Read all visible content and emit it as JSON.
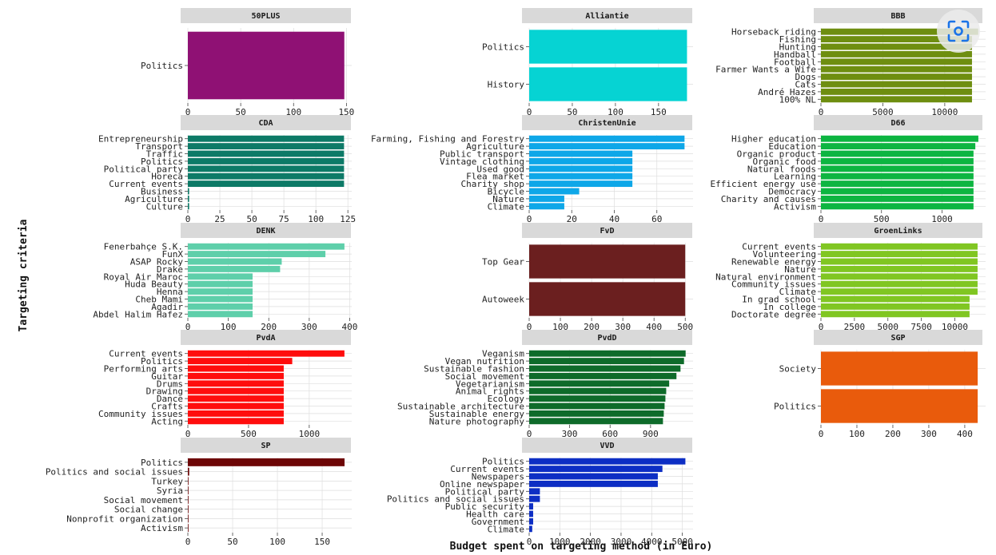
{
  "figure": {
    "xlabel": "Budget spent on targeting method (in Euro)",
    "ylabel": "Targeting criteria"
  },
  "colors": {
    "strip": "#d9d9d9",
    "grid": "#dedede",
    "tick": "#444444"
  },
  "chart_data": [
    {
      "type": "bar",
      "orientation": "horizontal",
      "title": "50PLUS",
      "color": "#8f1174",
      "categories": [
        "Politics"
      ],
      "values": [
        148
      ],
      "xlim": [
        0,
        155
      ],
      "xticks": [
        0,
        50,
        100,
        150
      ]
    },
    {
      "type": "bar",
      "orientation": "horizontal",
      "title": "Alliantie",
      "color": "#06d3d3",
      "categories": [
        "Politics",
        "History"
      ],
      "values": [
        183,
        183
      ],
      "xlim": [
        0,
        190
      ],
      "xticks": [
        0,
        50,
        100,
        150
      ]
    },
    {
      "type": "bar",
      "orientation": "horizontal",
      "title": "BBB",
      "color": "#6e8e10",
      "categories": [
        "Horseback riding",
        "Fishing",
        "Hunting",
        "Handball",
        "Football",
        "Farmer Wants a Wife",
        "Dogs",
        "Cats",
        "André Hazes",
        "100% NL"
      ],
      "values": [
        12700,
        12200,
        12200,
        12200,
        12200,
        12200,
        12200,
        12200,
        12200,
        12200
      ],
      "xlim": [
        0,
        13300
      ],
      "xticks": [
        0,
        5000,
        10000
      ]
    },
    {
      "type": "bar",
      "orientation": "horizontal",
      "title": "CDA",
      "color": "#0d7a67",
      "categories": [
        "Entrepreneurship",
        "Transport",
        "Traffic",
        "Politics",
        "Political party",
        "Horeca",
        "Current events",
        "Business",
        "Agriculture",
        "Culture"
      ],
      "values": [
        122,
        122,
        122,
        122,
        122,
        122,
        122,
        1,
        1,
        1
      ],
      "xlim": [
        0,
        128
      ],
      "xticks": [
        0,
        25,
        50,
        75,
        100,
        125
      ]
    },
    {
      "type": "bar",
      "orientation": "horizontal",
      "title": "ChristenUnie",
      "color": "#0ea7e8",
      "categories": [
        "Farming, Fishing and Forestry",
        "Agriculture",
        "Public transport",
        "Vintage clothing",
        "Used good",
        "Flea market",
        "Charity shop",
        "Bicycle",
        "Nature",
        "Climate"
      ],
      "values": [
        73,
        73,
        48.5,
        48.5,
        48.5,
        48.5,
        48.5,
        23.5,
        16.5,
        16.5
      ],
      "xlim": [
        0,
        77
      ],
      "xticks": [
        0,
        20,
        40,
        60
      ]
    },
    {
      "type": "bar",
      "orientation": "horizontal",
      "title": "D66",
      "color": "#0db541",
      "categories": [
        "Higher education",
        "Education",
        "Organic product",
        "Organic food",
        "Natural foods",
        "Learning",
        "Efficient energy use",
        "Democracy",
        "Charity and causes",
        "Activism"
      ],
      "values": [
        1300,
        1275,
        1260,
        1260,
        1260,
        1260,
        1260,
        1260,
        1260,
        1260
      ],
      "xlim": [
        0,
        1360
      ],
      "xticks": [
        0,
        500,
        1000
      ]
    },
    {
      "type": "bar",
      "orientation": "horizontal",
      "title": "DENK",
      "color": "#5ecfaa",
      "categories": [
        "Fenerbahçe S.K.",
        "FunX",
        "ASAP Rocky",
        "Drake",
        "Royal Air Maroc",
        "Huda Beauty",
        "Henna",
        "Cheb Mami",
        "Agadir",
        "Abdel Halim Hafez"
      ],
      "values": [
        387,
        340,
        232,
        228,
        160,
        160,
        160,
        160,
        160,
        160
      ],
      "xlim": [
        0,
        405
      ],
      "xticks": [
        0,
        100,
        200,
        300,
        400
      ]
    },
    {
      "type": "bar",
      "orientation": "horizontal",
      "title": "FvD",
      "color": "#6b1f1f",
      "categories": [
        "Top Gear",
        "Autoweek"
      ],
      "values": [
        500,
        500
      ],
      "xlim": [
        0,
        525
      ],
      "xticks": [
        0,
        100,
        200,
        300,
        400,
        500
      ]
    },
    {
      "type": "bar",
      "orientation": "horizontal",
      "title": "GroenLinks",
      "color": "#80c622",
      "categories": [
        "Current events",
        "Volunteering",
        "Renewable energy",
        "Nature",
        "Natural environment",
        "Community issues",
        "Climate",
        "In grad school",
        "In college",
        "Doctorate degree"
      ],
      "values": [
        11700,
        11700,
        11700,
        11700,
        11700,
        11700,
        11700,
        11100,
        11100,
        11100
      ],
      "xlim": [
        0,
        12300
      ],
      "xticks": [
        0,
        2500,
        5000,
        7500,
        10000
      ]
    },
    {
      "type": "bar",
      "orientation": "horizontal",
      "title": "PvdA",
      "color": "#ff0d0d",
      "categories": [
        "Current events",
        "Politics",
        "Performing arts",
        "Guitar",
        "Drums",
        "Drawing",
        "Dance",
        "Crafts",
        "Community issues",
        "Acting"
      ],
      "values": [
        1290,
        860,
        790,
        790,
        790,
        790,
        790,
        790,
        790,
        790
      ],
      "xlim": [
        0,
        1350
      ],
      "xticks": [
        0,
        500,
        1000
      ]
    },
    {
      "type": "bar",
      "orientation": "horizontal",
      "title": "PvdD",
      "color": "#0e6b2a",
      "categories": [
        "Veganism",
        "Vegan nutrition",
        "Sustainable fashion",
        "Social movement",
        "Vegetarianism",
        "Animal rights",
        "Ecology",
        "Sustainable architecture",
        "Sustainable energy",
        "Nature photography"
      ],
      "values": [
        1160,
        1148,
        1122,
        1092,
        1038,
        1016,
        1010,
        1004,
        998,
        992
      ],
      "xlim": [
        0,
        1215
      ],
      "xticks": [
        0,
        300,
        600,
        900
      ]
    },
    {
      "type": "bar",
      "orientation": "horizontal",
      "title": "SGP",
      "color": "#e95b0c",
      "categories": [
        "Society",
        "Politics"
      ],
      "values": [
        436,
        436
      ],
      "xlim": [
        0,
        458
      ],
      "xticks": [
        0,
        100,
        200,
        300,
        400
      ]
    },
    {
      "type": "bar",
      "orientation": "horizontal",
      "title": "SP",
      "color": "#6d0606",
      "categories": [
        "Politics",
        "Politics and social issues",
        "Turkey",
        "Syria",
        "Social movement",
        "Social change",
        "Nonprofit organization",
        "Activism"
      ],
      "values": [
        175,
        1.5,
        0.5,
        0.5,
        0.5,
        0.5,
        0.5,
        0.5
      ],
      "xlim": [
        0,
        183
      ],
      "xticks": [
        0,
        50,
        100,
        150
      ]
    },
    {
      "type": "bar",
      "orientation": "horizontal",
      "title": "VVD",
      "color": "#0d2ec4",
      "categories": [
        "Politics",
        "Current events",
        "Newspapers",
        "Online newspaper",
        "Political party",
        "Politics and social issues",
        "Public security",
        "Health care",
        "Government",
        "Climate"
      ],
      "values": [
        5100,
        4350,
        4200,
        4200,
        350,
        350,
        130,
        130,
        130,
        100
      ],
      "xlim": [
        0,
        5350
      ],
      "xticks": [
        0,
        1000,
        2000,
        3000,
        4000,
        5000
      ]
    }
  ]
}
